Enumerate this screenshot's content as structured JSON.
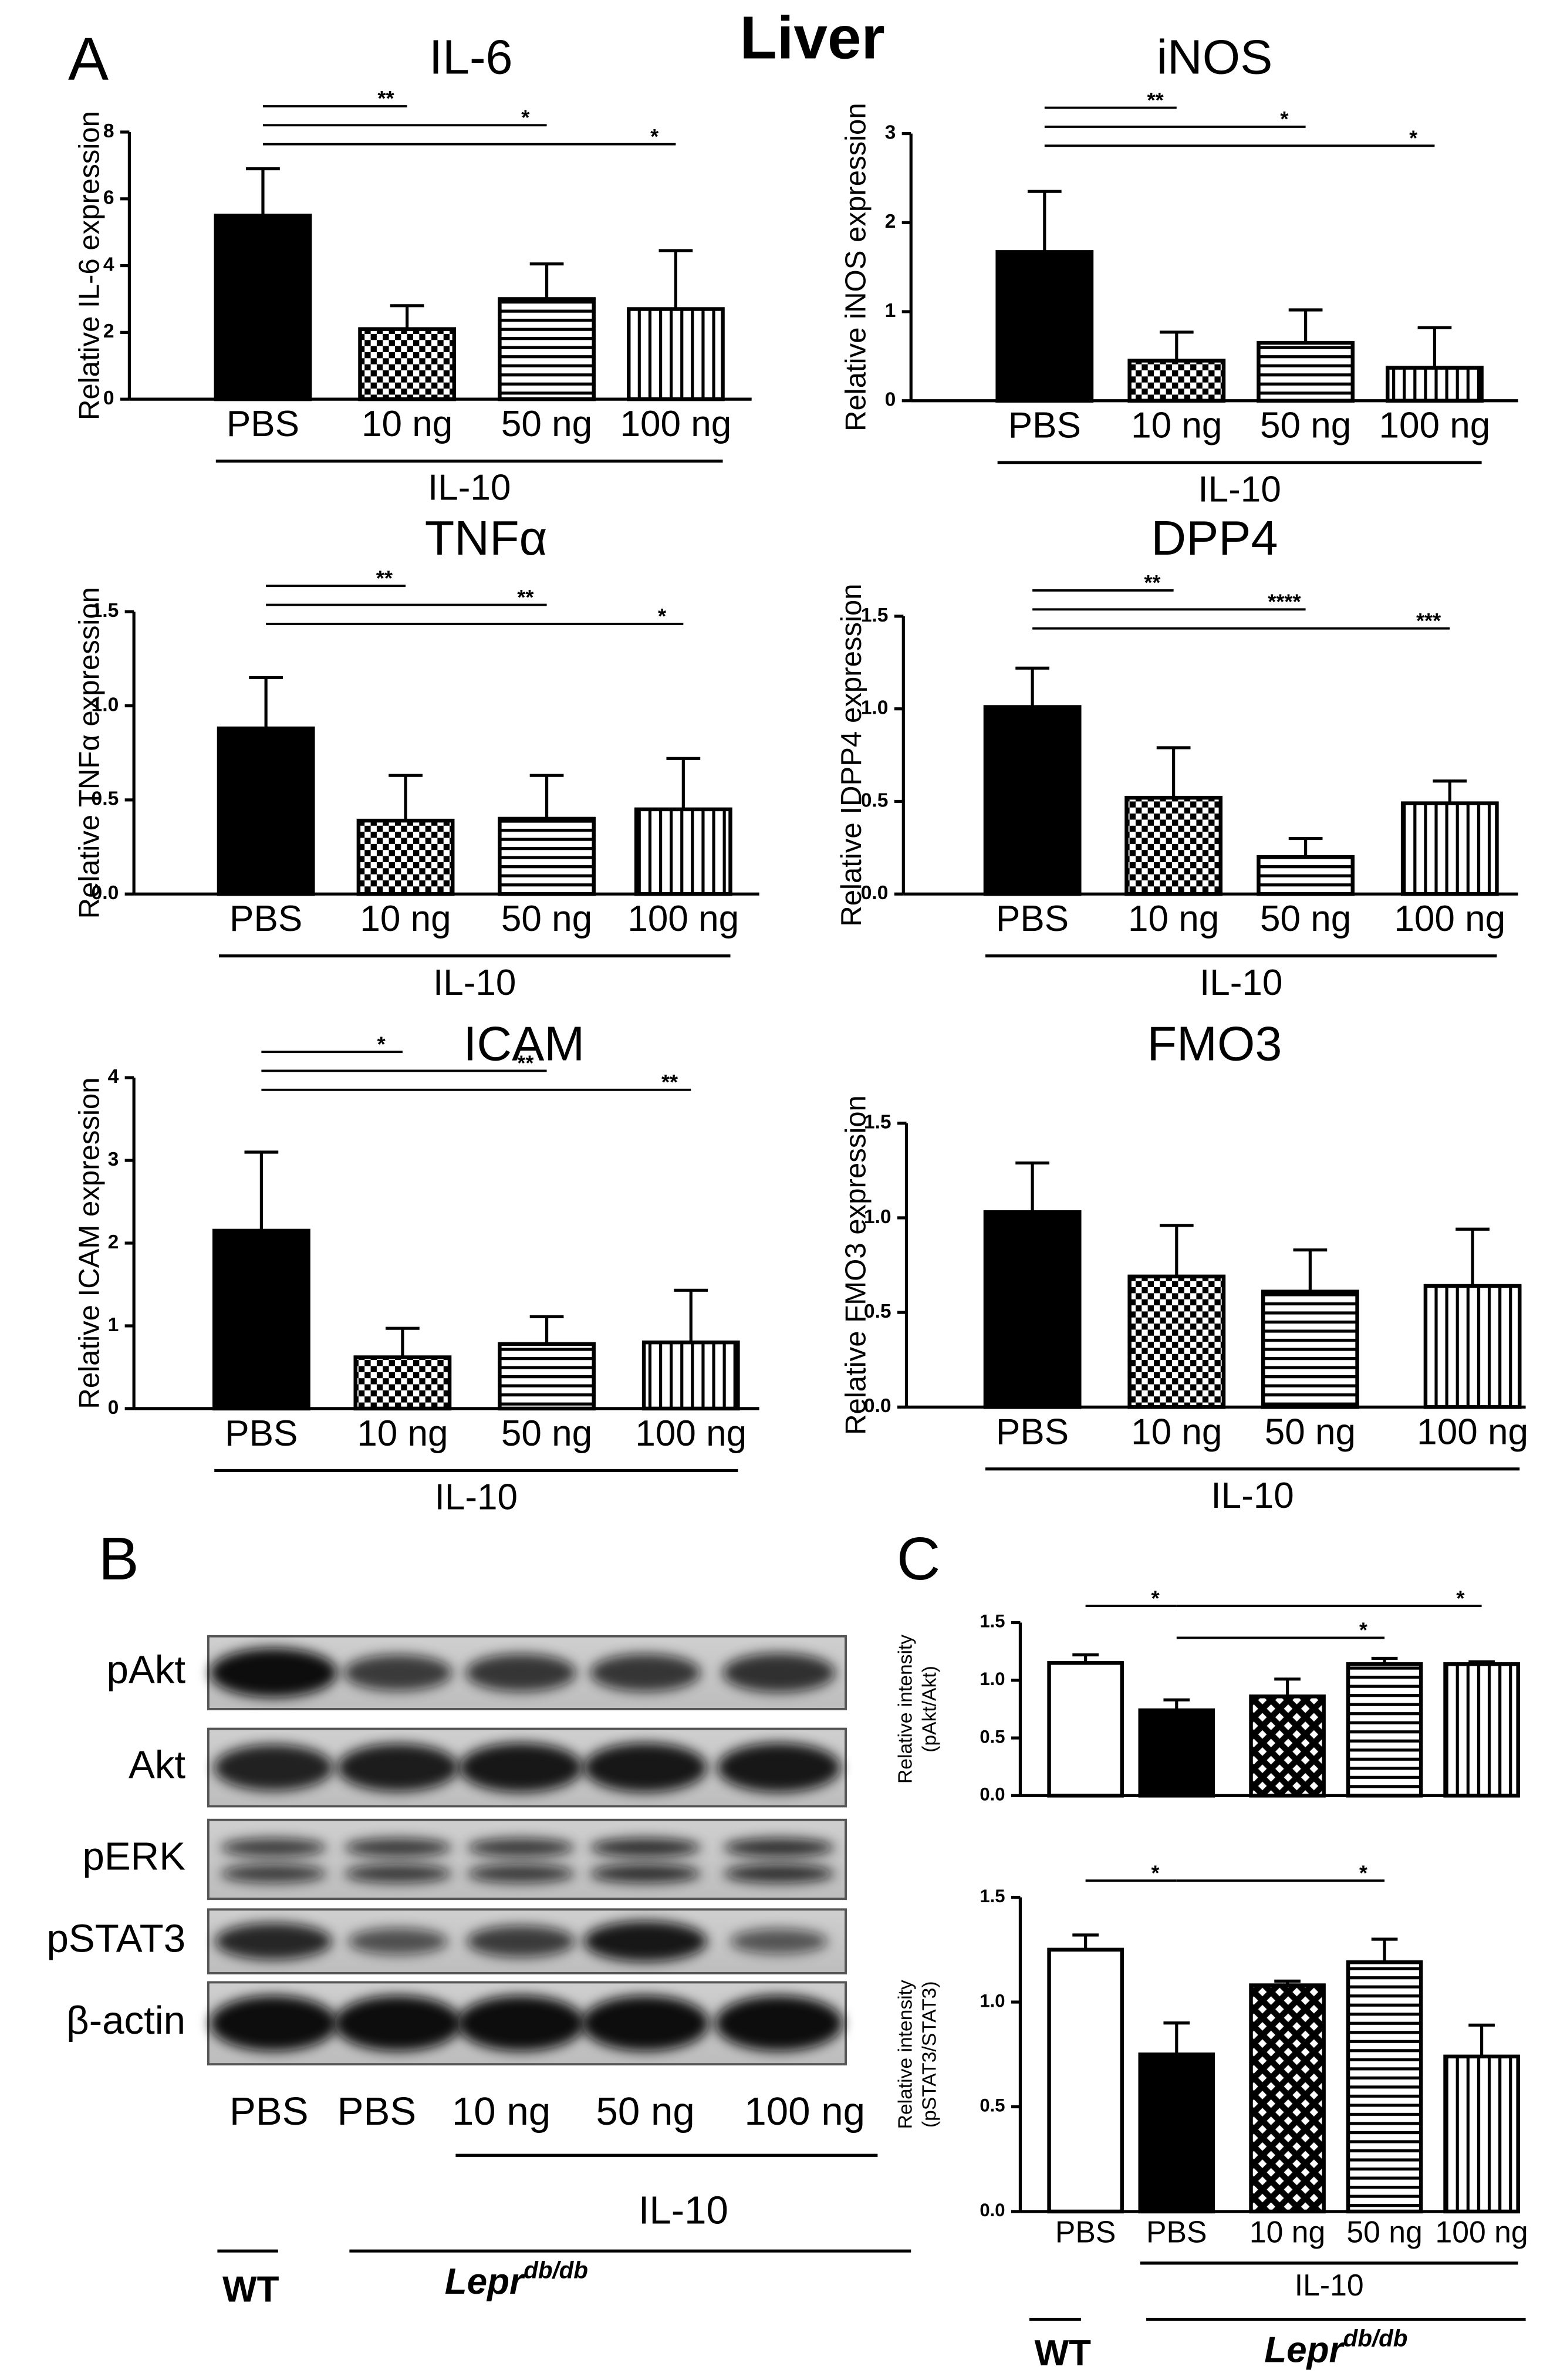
{
  "figure_title": "Liver",
  "panel_labels": [
    "A",
    "B",
    "C"
  ],
  "chart_data": [
    {
      "type": "bar",
      "title": "IL-6",
      "y_label": "Relative IL-6 expression",
      "categories": [
        "PBS",
        "10 ng",
        "50 ng",
        "100 ng"
      ],
      "values": [
        5.5,
        2.1,
        3.0,
        2.7
      ],
      "errors": [
        1.4,
        0.7,
        1.05,
        1.75
      ],
      "patterns": [
        "solid",
        "checker",
        "horizontal",
        "vertical"
      ],
      "color": "#000000",
      "ylim": [
        0,
        8
      ],
      "yticks": [
        0,
        2,
        4,
        6,
        8
      ],
      "significance": [
        {
          "from": 0,
          "to": 1,
          "label": "**"
        },
        {
          "from": 0,
          "to": 2,
          "label": "*"
        },
        {
          "from": 0,
          "to": 3,
          "label": "*"
        }
      ],
      "group_label": "IL-10"
    },
    {
      "type": "bar",
      "title": "iNOS",
      "y_label": "Relative iNOS expression",
      "categories": [
        "PBS",
        "10 ng",
        "50 ng",
        "100 ng"
      ],
      "values": [
        1.67,
        0.45,
        0.65,
        0.37
      ],
      "errors": [
        0.68,
        0.32,
        0.37,
        0.45
      ],
      "patterns": [
        "solid",
        "checker",
        "horizontal",
        "vertical"
      ],
      "color": "#000000",
      "ylim": [
        0,
        3
      ],
      "yticks": [
        0,
        1,
        2,
        3
      ],
      "significance": [
        {
          "from": 0,
          "to": 1,
          "label": "**"
        },
        {
          "from": 0,
          "to": 2,
          "label": "*"
        },
        {
          "from": 0,
          "to": 3,
          "label": "*"
        }
      ],
      "group_label": "IL-10"
    },
    {
      "type": "bar",
      "title": "TNFα",
      "y_label": "Relative TNFα expression",
      "categories": [
        "PBS",
        "10 ng",
        "50 ng",
        "100 ng"
      ],
      "values": [
        0.88,
        0.39,
        0.4,
        0.45
      ],
      "errors": [
        0.27,
        0.24,
        0.23,
        0.27
      ],
      "patterns": [
        "solid",
        "checker",
        "horizontal",
        "vertical"
      ],
      "color": "#000000",
      "ylim": [
        0,
        1.5
      ],
      "yticks": [
        {
          "value": 0,
          "label": "0.0"
        },
        {
          "value": 0.5,
          "label": "0.5"
        },
        {
          "value": 1,
          "label": "1.0"
        },
        1.5
      ],
      "significance": [
        {
          "from": 0,
          "to": 1,
          "label": "**"
        },
        {
          "from": 0,
          "to": 2,
          "label": "**"
        },
        {
          "from": 0,
          "to": 3,
          "label": "*"
        }
      ],
      "group_label": "IL-10"
    },
    {
      "type": "bar",
      "title": "DPP4",
      "y_label": "Relative IDPP4 expression",
      "categories": [
        "PBS",
        "10 ng",
        "50 ng",
        "100 ng"
      ],
      "values": [
        1.01,
        0.52,
        0.2,
        0.49
      ],
      "errors": [
        0.21,
        0.27,
        0.1,
        0.12
      ],
      "patterns": [
        "solid",
        "checker",
        "horizontal",
        "vertical"
      ],
      "color": "#000000",
      "ylim": [
        0,
        1.5
      ],
      "yticks": [
        {
          "value": 0,
          "label": "0.0"
        },
        {
          "value": 0.5,
          "label": "0.5"
        },
        {
          "value": 1,
          "label": "1.0"
        },
        1.5
      ],
      "significance": [
        {
          "from": 0,
          "to": 1,
          "label": "**"
        },
        {
          "from": 0,
          "to": 2,
          "label": "****"
        },
        {
          "from": 0,
          "to": 3,
          "label": "***"
        }
      ],
      "group_label": "IL-10"
    },
    {
      "type": "bar",
      "title": "ICAM",
      "y_label": "Relative ICAM expression",
      "categories": [
        "PBS",
        "10 ng",
        "50 ng",
        "100 ng"
      ],
      "values": [
        2.15,
        0.62,
        0.78,
        0.8
      ],
      "errors": [
        0.95,
        0.35,
        0.33,
        0.63
      ],
      "patterns": [
        "solid",
        "checker",
        "horizontal",
        "vertical"
      ],
      "color": "#000000",
      "ylim": [
        0,
        4
      ],
      "yticks": [
        0,
        1,
        2,
        3,
        4
      ],
      "significance": [
        {
          "from": 0,
          "to": 1,
          "label": "*"
        },
        {
          "from": 0,
          "to": 2,
          "label": "**"
        },
        {
          "from": 0,
          "to": 3,
          "label": "**"
        }
      ],
      "group_label": "IL-10"
    },
    {
      "type": "bar",
      "title": "FMO3",
      "y_label": "Relative FMO3 expression",
      "categories": [
        "PBS",
        "10 ng",
        "50 ng",
        "100 ng"
      ],
      "values": [
        1.03,
        0.69,
        0.61,
        0.64
      ],
      "errors": [
        0.26,
        0.27,
        0.22,
        0.3
      ],
      "patterns": [
        "solid",
        "checker",
        "horizontal",
        "vertical"
      ],
      "color": "#000000",
      "ylim": [
        0,
        1.5
      ],
      "yticks": [
        {
          "value": 0,
          "label": "0.0"
        },
        {
          "value": 0.5,
          "label": "0.5"
        },
        {
          "value": 1,
          "label": "1.0"
        },
        1.5
      ],
      "significance": [],
      "group_label": "IL-10"
    },
    {
      "type": "bar",
      "y_label": [
        "Relative intensity",
        "(pAkt/Akt)"
      ],
      "categories": [
        null,
        null,
        null,
        null,
        null
      ],
      "values": [
        1.15,
        0.74,
        0.86,
        1.14,
        1.14
      ],
      "errors": [
        0.07,
        0.09,
        0.15,
        0.05,
        0.02
      ],
      "patterns": [
        "open",
        "solid",
        "crosshatch",
        "horizontal",
        "vertical"
      ],
      "color": "#000000",
      "ylim": [
        0,
        1.5
      ],
      "yticks": [
        {
          "value": 0,
          "label": "0.0"
        },
        {
          "value": 0.5,
          "label": "0.5"
        },
        {
          "value": 1,
          "label": "1.0"
        },
        1.5
      ],
      "significance": [
        {
          "from": 0,
          "to": 1,
          "label": "*"
        },
        {
          "from": 1,
          "to": 4,
          "label": "*"
        },
        {
          "from": 1,
          "to": 3,
          "label": "*"
        }
      ]
    },
    {
      "type": "bar",
      "y_label": [
        "Relative intensity",
        "(pSTAT3/STAT3)"
      ],
      "categories": [
        "PBS",
        "PBS",
        "10 ng",
        "50 ng",
        "100 ng"
      ],
      "values": [
        1.25,
        0.75,
        1.08,
        1.19,
        0.74
      ],
      "errors": [
        0.07,
        0.15,
        0.02,
        0.11,
        0.15
      ],
      "patterns": [
        "open",
        "solid",
        "crosshatch",
        "horizontal",
        "vertical"
      ],
      "color": "#000000",
      "ylim": [
        0,
        1.5
      ],
      "yticks": [
        {
          "value": 0,
          "label": "0.0"
        },
        {
          "value": 0.5,
          "label": "0.5"
        },
        {
          "value": 1,
          "label": "1.0"
        },
        1.5
      ],
      "significance": [
        {
          "from": 0,
          "to": 1,
          "label": "*"
        },
        {
          "from": 1,
          "to": 3,
          "label": "*"
        }
      ],
      "group_label": "IL-10"
    }
  ],
  "blot": {
    "rows": [
      "pAkt",
      "Akt",
      "pERK",
      "pSTAT3",
      "β-actin"
    ],
    "lanes": [
      "PBS",
      "PBS",
      "10 ng",
      "50 ng",
      "100 ng"
    ],
    "group_label": "IL-10",
    "wt_label": "WT",
    "lepr_label": {
      "text": "Lepr",
      "superscript": "db/db"
    }
  },
  "panel_c": {
    "wt_label": "WT",
    "lepr_label": {
      "text": "Lepr",
      "superscript": "db/db"
    }
  }
}
